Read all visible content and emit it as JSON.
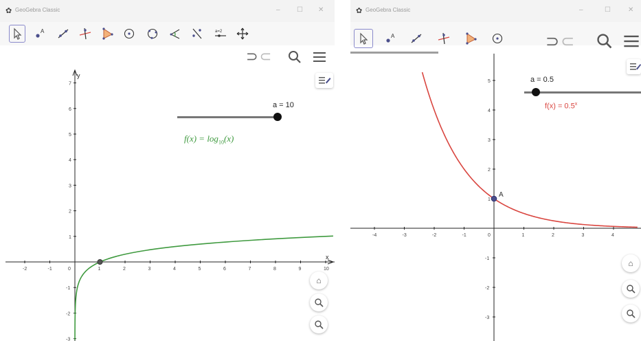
{
  "colors": {
    "log_curve": "#3f9a3f",
    "exp_curve": "#d9453f",
    "point": "#4b4f8c",
    "axis": "#222222",
    "toolbar_bg": "#f7f7f7",
    "title_bg": "#f3f3f3"
  },
  "left": {
    "title": "GeoGebra Classic",
    "tools": [
      "move-tool",
      "point-tool",
      "line-tool",
      "perpendicular-line-tool",
      "polygon-tool",
      "circle-center-point-tool",
      "circle-through-three-points-tool",
      "angle-tool",
      "reflect-about-line-tool",
      "slider-tool",
      "move-graphics-view-tool"
    ],
    "slider": {
      "label": "a = 10",
      "value": 10,
      "min": 0.1,
      "max": 10
    },
    "function_label_main": "f(x) = log",
    "function_label_sub": "10",
    "function_label_tail": "(x)",
    "x_axis_label": "x",
    "y_axis_label": "y",
    "x_ticks": [
      "-2",
      "-1",
      "0",
      "1",
      "2",
      "3",
      "4",
      "5",
      "6",
      "7",
      "8",
      "9",
      "10"
    ],
    "y_ticks": [
      "7",
      "6",
      "5",
      "4",
      "3",
      "2",
      "1",
      "-1",
      "-2",
      "-3"
    ]
  },
  "right": {
    "title": "GeoGebra Classic",
    "tools": [
      "move-tool",
      "point-tool",
      "line-tool",
      "perpendicular-line-tool",
      "polygon-tool",
      "circle-center-point-tool"
    ],
    "slider": {
      "label": "a = 0.5",
      "value": 0.5
    },
    "function_label_main": "f(x)  =  0.5",
    "function_label_sup": "x",
    "point_label": "A",
    "x_ticks": [
      "-4",
      "-3",
      "-2",
      "-1",
      "0",
      "1",
      "2",
      "3",
      "4"
    ],
    "y_ticks": [
      "5",
      "4",
      "3",
      "2",
      "1",
      "-1",
      "-2",
      "-3"
    ]
  },
  "chart_data": [
    {
      "type": "line",
      "series": [
        {
          "name": "f(x) = log10(x)",
          "function": "log10(x)",
          "points": [
            [
              0.05,
              -1.3
            ],
            [
              0.1,
              -1.0
            ],
            [
              0.5,
              -0.301
            ],
            [
              1,
              0
            ],
            [
              2,
              0.301
            ],
            [
              4,
              0.602
            ],
            [
              6,
              0.778
            ],
            [
              8,
              0.903
            ],
            [
              10,
              1.0
            ]
          ]
        }
      ],
      "xlim": [
        -2.5,
        10.3
      ],
      "ylim": [
        -3,
        7.3
      ],
      "xlabel": "x",
      "ylabel": "y",
      "marked_point": [
        1,
        0
      ],
      "grid": false
    },
    {
      "type": "line",
      "series": [
        {
          "name": "f(x) = 0.5^x",
          "function": "0.5^x",
          "points": [
            [
              -2.4,
              5.28
            ],
            [
              -2,
              4
            ],
            [
              -1,
              2
            ],
            [
              0,
              1
            ],
            [
              1,
              0.5
            ],
            [
              2,
              0.25
            ],
            [
              3,
              0.125
            ],
            [
              4,
              0.0625
            ],
            [
              4.8,
              0.036
            ]
          ]
        }
      ],
      "xlim": [
        -4.8,
        4.8
      ],
      "ylim": [
        -3.3,
        5.7
      ],
      "marked_point": {
        "label": "A",
        "x": 0,
        "y": 1
      },
      "grid": false
    }
  ]
}
